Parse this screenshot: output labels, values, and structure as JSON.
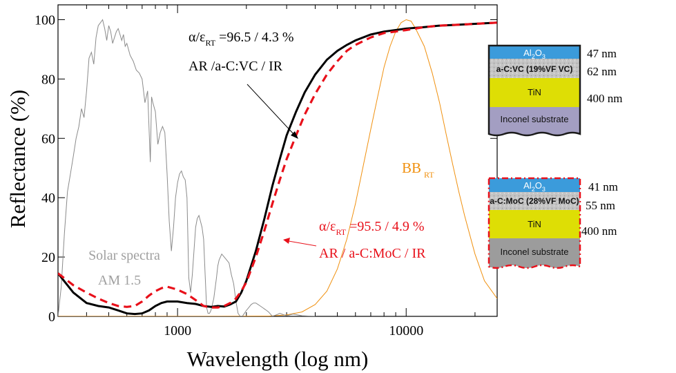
{
  "chart_data": {
    "type": "line",
    "xlabel": "Wavelength (log nm)",
    "ylabel": "Reflectance (%)",
    "xscale": "log",
    "xlim": [
      300,
      25000
    ],
    "ylim": [
      0,
      105
    ],
    "yticks": [
      {
        "value": 0,
        "label": "0"
      },
      {
        "value": 20,
        "label": "20"
      },
      {
        "value": 40,
        "label": "40"
      },
      {
        "value": 60,
        "label": "60"
      },
      {
        "value": 80,
        "label": "80"
      },
      {
        "value": 100,
        "label": "100"
      }
    ],
    "xticks": [
      {
        "value": 1000,
        "label": "1000"
      },
      {
        "value": 10000,
        "label": "10000"
      }
    ],
    "colors": {
      "black": "#000000",
      "red": "#e8101a",
      "orange": "#f0900e",
      "gray": "#8a8a8a"
    },
    "series": [
      {
        "key": "vc",
        "color": "#000000",
        "style": "solid",
        "x": [
          300,
          350,
          400,
          450,
          500,
          550,
          600,
          650,
          700,
          750,
          800,
          850,
          900,
          1000,
          1100,
          1200,
          1300,
          1400,
          1500,
          1600,
          1700,
          1800,
          1900,
          2000,
          2200,
          2400,
          2600,
          2800,
          3000,
          3300,
          3600,
          4000,
          4500,
          5000,
          5500,
          6000,
          7000,
          8000,
          9000,
          10000,
          12000,
          14000,
          17000,
          20000,
          25000
        ],
        "y": [
          14.5,
          8,
          4.5,
          3.5,
          3,
          2,
          1,
          0.8,
          1,
          2,
          3.5,
          4.5,
          5,
          5,
          4.5,
          4.2,
          3.5,
          3.2,
          3.5,
          3.3,
          4,
          5,
          8,
          12,
          22,
          33,
          44,
          53,
          61,
          69,
          75.5,
          81.5,
          86.5,
          89.5,
          91.5,
          93,
          95,
          96,
          96.5,
          97,
          97.5,
          98,
          98.3,
          98.6,
          99
        ]
      },
      {
        "key": "moc",
        "color": "#e8101a",
        "style": "dashed",
        "x": [
          300,
          350,
          400,
          450,
          500,
          550,
          600,
          650,
          700,
          750,
          800,
          850,
          900,
          1000,
          1100,
          1200,
          1300,
          1400,
          1500,
          1600,
          1700,
          1800,
          1900,
          2000,
          2200,
          2400,
          2600,
          2800,
          3000,
          3300,
          3600,
          4000,
          4500,
          5000,
          5500,
          6000,
          7000,
          8000,
          9000,
          10000,
          12000,
          14000,
          17000,
          20000,
          25000
        ],
        "y": [
          14.5,
          10.5,
          8,
          6,
          4.5,
          3.5,
          3.2,
          3.5,
          5,
          7,
          8.5,
          9.5,
          10,
          9,
          7.5,
          5.5,
          3.5,
          3,
          3,
          3.5,
          4.5,
          6,
          8.5,
          11.5,
          20,
          29,
          38,
          46,
          53,
          61,
          68,
          75,
          81.5,
          86,
          89.5,
          91.5,
          94,
          95.5,
          96,
          96.5,
          97.5,
          98,
          98.3,
          98.6,
          99
        ]
      },
      {
        "key": "bb",
        "color": "#f0900e",
        "style": "solid",
        "x": [
          300,
          1500,
          2500,
          3000,
          3500,
          4000,
          4500,
          5000,
          5500,
          6000,
          6500,
          7000,
          7500,
          8000,
          8500,
          9000,
          9500,
          10000,
          10500,
          11000,
          12000,
          13000,
          14000,
          15000,
          16000,
          17000,
          18000,
          20000,
          22000,
          25000
        ],
        "y": [
          0,
          0,
          0.1,
          0.5,
          1.5,
          4,
          8.5,
          16,
          26,
          38,
          51,
          63,
          74,
          84,
          91,
          96,
          99,
          100,
          99.5,
          97,
          91,
          82,
          72,
          61,
          51,
          42,
          34,
          21,
          12,
          6
        ]
      },
      {
        "key": "solar",
        "color": "#8a8a8a",
        "style": "solid",
        "x": [
          300,
          310,
          320,
          330,
          340,
          350,
          360,
          370,
          380,
          390,
          400,
          410,
          420,
          430,
          440,
          450,
          460,
          470,
          480,
          490,
          500,
          510,
          520,
          530,
          540,
          550,
          560,
          570,
          580,
          590,
          600,
          620,
          640,
          660,
          680,
          700,
          720,
          740,
          760,
          770,
          780,
          800,
          820,
          840,
          860,
          880,
          900,
          920,
          940,
          960,
          980,
          1000,
          1020,
          1040,
          1060,
          1080,
          1100,
          1120,
          1140,
          1160,
          1180,
          1200,
          1220,
          1240,
          1260,
          1280,
          1300,
          1320,
          1340,
          1360,
          1380,
          1400,
          1440,
          1480,
          1500,
          1520,
          1560,
          1600,
          1640,
          1680,
          1720,
          1760,
          1800,
          1840,
          1880,
          1920,
          1960,
          2000,
          2050,
          2100,
          2150,
          2200,
          2250,
          2300,
          2350,
          2400,
          2450,
          2500,
          2600,
          2700,
          2800,
          3000,
          3200,
          3500,
          3800,
          4000
        ],
        "y": [
          0,
          10,
          28,
          42,
          48,
          54,
          60,
          64,
          70,
          67,
          76,
          87,
          89,
          85,
          94,
          98,
          99,
          100,
          97,
          93,
          98,
          96,
          92,
          94,
          96,
          97,
          95,
          93,
          95,
          91,
          92,
          88,
          86,
          83,
          82,
          80,
          72,
          76,
          52,
          74,
          72,
          69,
          58,
          62,
          64,
          62,
          48,
          32,
          22,
          30,
          40,
          45,
          48,
          49,
          47,
          46,
          40,
          13,
          8,
          14,
          22,
          30,
          33,
          34,
          32,
          30,
          26,
          14,
          3,
          1,
          1,
          2,
          6,
          13,
          17,
          19,
          21,
          20,
          19,
          18,
          14,
          11,
          5,
          1,
          0,
          0,
          1,
          2,
          3,
          4,
          4.5,
          4.5,
          4,
          3.5,
          3,
          2.5,
          2,
          1.5,
          0,
          0.5,
          1,
          0.2,
          0.8,
          0.2,
          0.1,
          0
        ]
      }
    ]
  },
  "annotations": {
    "vc_alpha": "α/ε",
    "vc_sub": "RT",
    "vc_value": " =96.5 / 4.3 %",
    "vc_stack": "AR /a-C:VC / IR",
    "moc_alpha": "α/ε",
    "moc_sub": "RT",
    "moc_value": " =95.5 / 4.9 %",
    "moc_stack": "AR / a-C:MoC / IR",
    "bb_label": "BB",
    "bb_sub": "RT",
    "solar_line1": "Solar spectra",
    "solar_line2": "AM 1.5"
  },
  "stack_vc": {
    "al_main": "Al",
    "al_sub1": "2",
    "al_mid": "O",
    "al_sub2": "3",
    "absorber": "a-C:VC (19%VF  VC)",
    "tin": "TiN",
    "substrate": "Inconel substrate",
    "thick_al": "47 nm",
    "thick_abs": "62 nm",
    "thick_tin": "400 nm",
    "colors": {
      "al": "#3b9bdb",
      "absorber": "#c6c6c6",
      "tin": "#dede05",
      "substrate": "#a39ec2"
    }
  },
  "stack_moc": {
    "al_main": "Al",
    "al_sub1": "2",
    "al_mid": "O",
    "al_sub2": "3",
    "absorber": "a-C:MoC (28%VF MoC)",
    "tin": "TiN",
    "substrate": "Inconel substrate",
    "thick_al": "41 nm",
    "thick_abs": "55 nm",
    "thick_tin": "400 nm",
    "colors": {
      "al": "#3b9bdb",
      "absorber": "#c6c6c6",
      "tin": "#dede05",
      "substrate": "#9c9c9c"
    }
  }
}
